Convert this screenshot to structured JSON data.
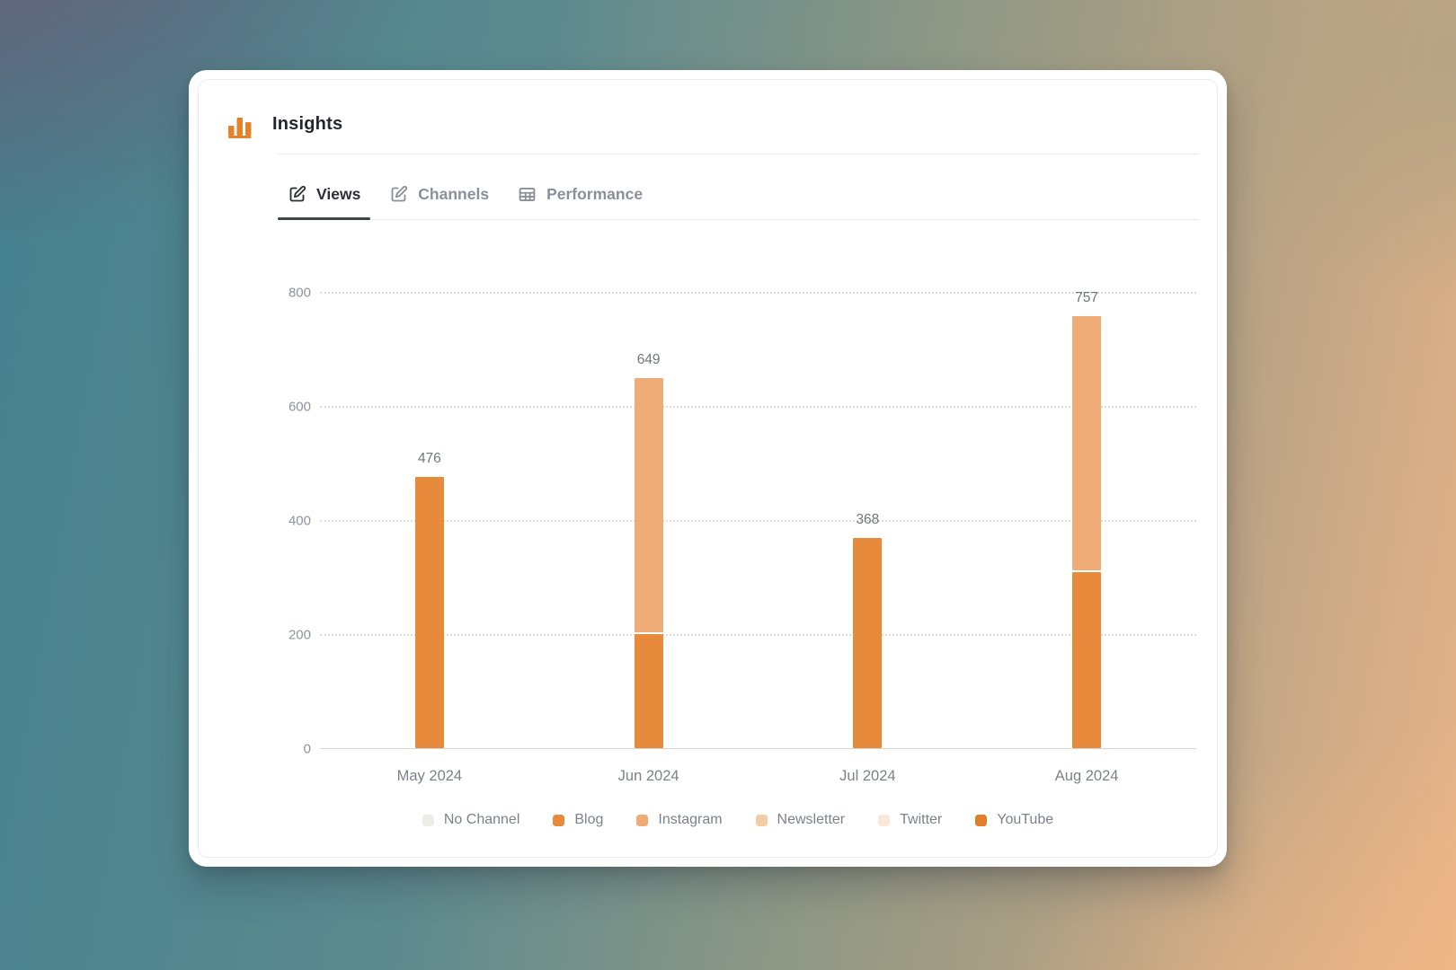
{
  "card": {
    "title": "Insights",
    "title_icon_color": "#E5822C",
    "tabs": [
      {
        "label": "Views",
        "icon": "edit-icon",
        "active": true
      },
      {
        "label": "Channels",
        "icon": "edit-icon",
        "active": false
      },
      {
        "label": "Performance",
        "icon": "table-icon",
        "active": false
      }
    ]
  },
  "chart_data": {
    "type": "bar",
    "stacked": true,
    "title": "",
    "xlabel": "",
    "ylabel": "",
    "categories": [
      "May 2024",
      "Jun 2024",
      "Jul 2024",
      "Aug 2024"
    ],
    "series": [
      {
        "name": "Blog",
        "color": "#E78A3C",
        "values": [
          476,
          200,
          368,
          308
        ]
      },
      {
        "name": "Instagram",
        "color": "#EFAC76",
        "values": [
          0,
          449,
          0,
          449
        ]
      }
    ],
    "totals": [
      476,
      649,
      368,
      757
    ],
    "y_ticks": [
      0,
      200,
      400,
      600,
      800
    ],
    "ylim": [
      0,
      800
    ],
    "grid": "horizontal-dotted",
    "legend_position": "bottom",
    "legend": [
      {
        "label": "No Channel",
        "color": "#ECECE9"
      },
      {
        "label": "Blog",
        "color": "#E78A3C"
      },
      {
        "label": "Instagram",
        "color": "#EFAC76"
      },
      {
        "label": "Newsletter",
        "color": "#F4CDA6"
      },
      {
        "label": "Twitter",
        "color": "#FAE8D7"
      },
      {
        "label": "YouTube",
        "color": "#E07E2A"
      }
    ]
  }
}
